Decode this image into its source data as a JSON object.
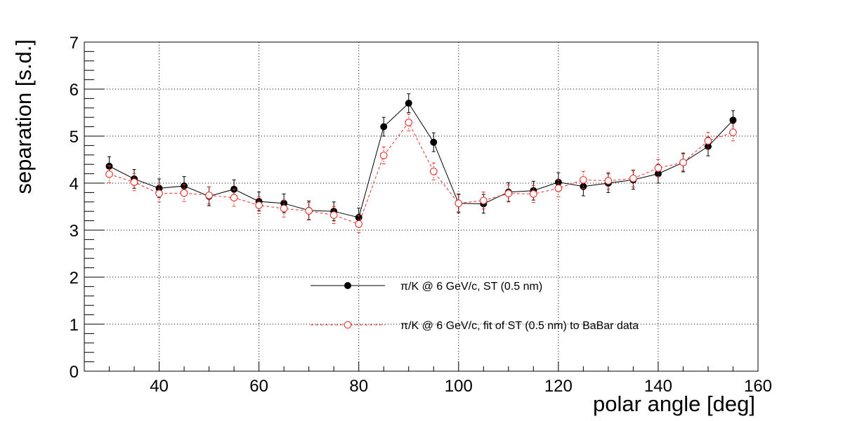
{
  "chart_data": {
    "type": "scatter",
    "title": "",
    "xlabel": "polar angle [deg]",
    "ylabel": "separation [s.d.]",
    "xlim": [
      25,
      160
    ],
    "ylim": [
      0,
      7
    ],
    "x_ticks": [
      40,
      60,
      80,
      100,
      120,
      140,
      160
    ],
    "y_ticks": [
      0,
      1,
      2,
      3,
      4,
      5,
      6,
      7
    ],
    "grid": true,
    "legend_position": "lower-center",
    "x": [
      30,
      35,
      40,
      45,
      50,
      55,
      60,
      65,
      70,
      75,
      80,
      85,
      90,
      95,
      100,
      105,
      110,
      115,
      120,
      125,
      130,
      135,
      140,
      145,
      150,
      155
    ],
    "series": [
      {
        "name": "π/K @ 6 GeV/c, ST (0.5 nm)",
        "color": "#000000",
        "marker": "filled-circle",
        "line": "solid",
        "values": [
          4.36,
          4.09,
          3.89,
          3.94,
          3.72,
          3.87,
          3.61,
          3.57,
          3.42,
          3.4,
          3.27,
          5.2,
          5.7,
          4.87,
          3.57,
          3.56,
          3.81,
          3.84,
          4.02,
          3.93,
          4.0,
          4.07,
          4.2,
          4.44,
          4.78,
          5.34
        ],
        "errors": [
          0.2,
          0.2,
          0.2,
          0.2,
          0.2,
          0.2,
          0.2,
          0.2,
          0.2,
          0.2,
          0.2,
          0.2,
          0.2,
          0.2,
          0.2,
          0.2,
          0.2,
          0.2,
          0.2,
          0.2,
          0.2,
          0.2,
          0.2,
          0.2,
          0.2,
          0.2
        ]
      },
      {
        "name": "π/K @ 6 GeV/c, fit of ST (0.5 nm) to BaBar data",
        "color": "#e8332a",
        "marker": "open-circle",
        "line": "dashed",
        "values": [
          4.19,
          4.02,
          3.78,
          3.79,
          3.74,
          3.69,
          3.53,
          3.46,
          3.41,
          3.32,
          3.13,
          4.59,
          5.29,
          4.25,
          3.57,
          3.63,
          3.78,
          3.77,
          3.89,
          4.07,
          4.05,
          4.1,
          4.32,
          4.44,
          4.9,
          5.08
        ],
        "errors": [
          0.18,
          0.18,
          0.18,
          0.18,
          0.18,
          0.18,
          0.18,
          0.18,
          0.18,
          0.18,
          0.18,
          0.18,
          0.18,
          0.18,
          0.18,
          0.18,
          0.18,
          0.18,
          0.18,
          0.18,
          0.18,
          0.18,
          0.18,
          0.18,
          0.18,
          0.18
        ]
      }
    ]
  }
}
